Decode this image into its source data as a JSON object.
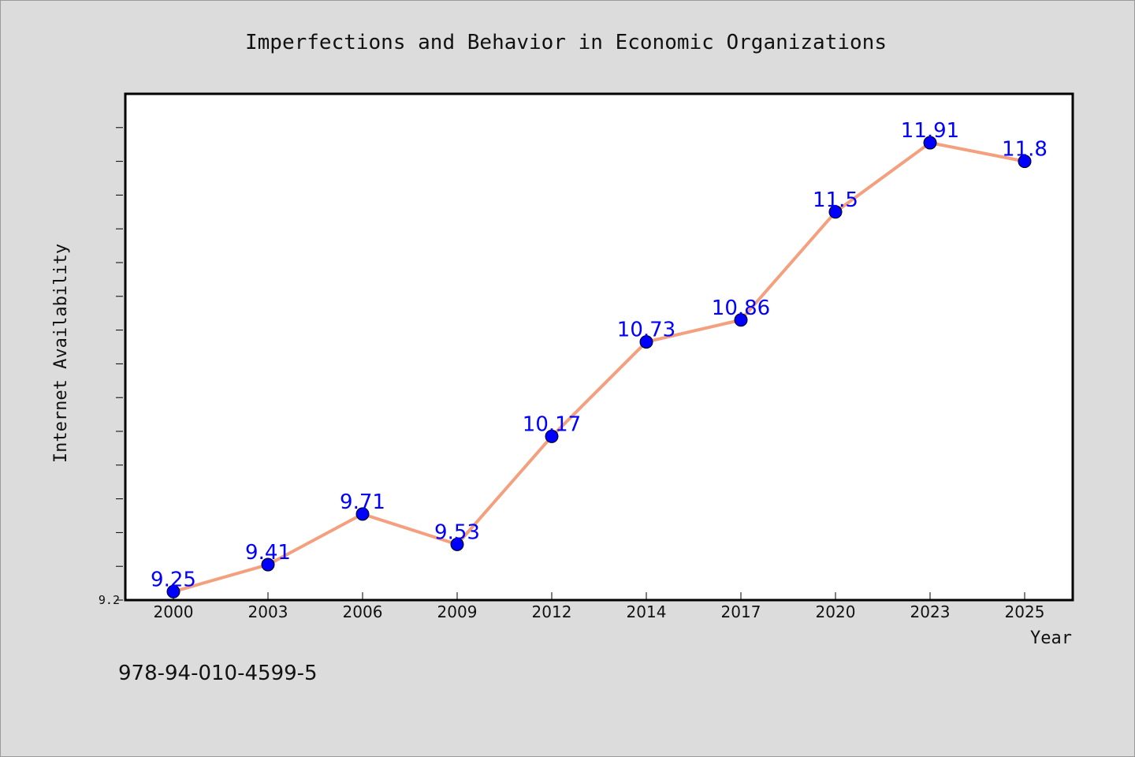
{
  "chart_data": {
    "type": "line",
    "title": "Imperfections and Behavior in Economic Organizations",
    "xlabel": "Year",
    "ylabel": "Internet Availability",
    "categories": [
      "2000",
      "2003",
      "2006",
      "2009",
      "2012",
      "2014",
      "2017",
      "2020",
      "2023",
      "2025"
    ],
    "series": [
      {
        "values": [
          9.25,
          9.41,
          9.71,
          9.53,
          10.17,
          10.73,
          10.86,
          11.5,
          11.91,
          11.8
        ],
        "data_labels": [
          "9.25",
          "9.41",
          "9.71",
          "9.53",
          "10.17",
          "10.73",
          "10.86",
          "11.5",
          "11.91",
          "11.8"
        ],
        "line_color": "#f4a07e",
        "marker_color": "#0000ff"
      }
    ],
    "ylim": [
      9.2,
      12.2
    ],
    "yticks_labeled": [
      "9.2"
    ],
    "grid": false,
    "legend": "none"
  },
  "footer": {
    "isbn": "978-94-010-4599-5"
  }
}
